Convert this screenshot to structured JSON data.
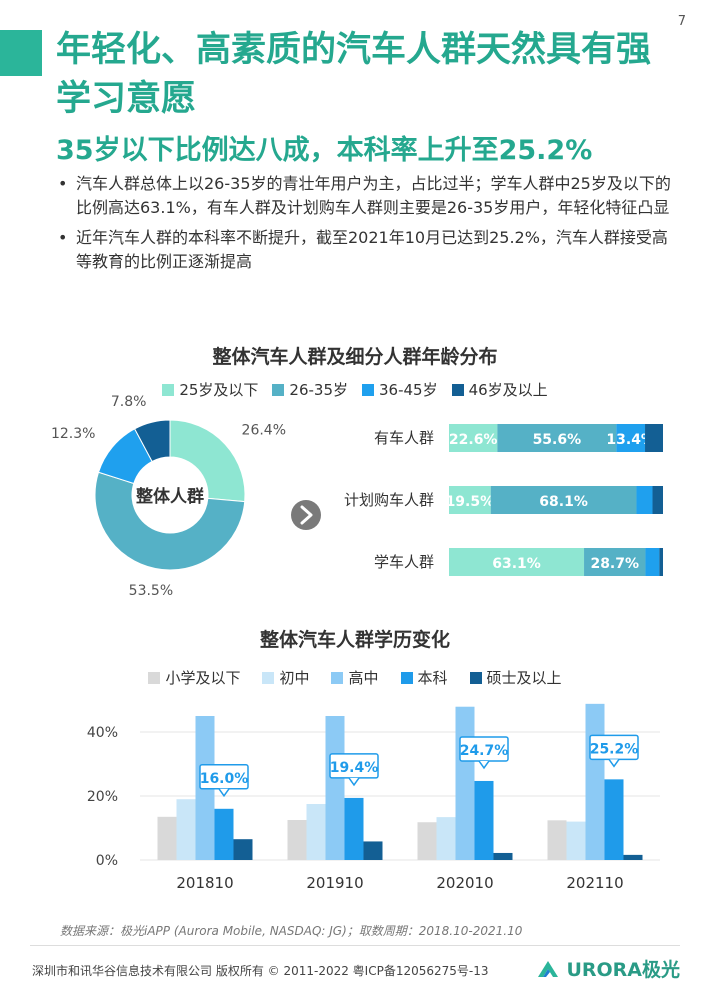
{
  "page_number": "7",
  "title": "年轻化、高素质的汽车人群天然具有强学习意愿",
  "subtitle": "35岁以下比例达八成，本科率上升至25.2%",
  "bullets": [
    "汽车人群总体上以26-35岁的青壮年用户为主，占比过半；学车人群中25岁及以下的比例高达63.1%，有车人群及计划购车人群则主要是26-35岁用户，年轻化特征凸显",
    "近年汽车人群的本科率不断提升，截至2021年10月已达到25.2%，汽车人群接受高等教育的比例正逐渐提高"
  ],
  "chart_data": [
    {
      "type": "pie",
      "title": "整体汽车人群及细分人群年龄分布",
      "center_label": "整体人群",
      "categories": [
        "25岁及以下",
        "26-35岁",
        "36-45岁",
        "46岁及以上"
      ],
      "values": [
        26.4,
        53.5,
        12.3,
        7.8
      ],
      "value_labels": [
        "26.4%",
        "53.5%",
        "12.3%",
        "7.8%"
      ],
      "colors": [
        "#8ee6d2",
        "#55b1c6",
        "#1fa0ee",
        "#135f94"
      ]
    },
    {
      "type": "bar",
      "stacked": true,
      "orientation": "horizontal",
      "categories": [
        "有车人群",
        "计划购车人群",
        "学车人群"
      ],
      "series": [
        {
          "name": "25岁及以下",
          "values": [
            22.6,
            19.5,
            63.1
          ],
          "labels": [
            "22.6%",
            "19.5%",
            "63.1%"
          ],
          "color": "#8ee6d2"
        },
        {
          "name": "26-35岁",
          "values": [
            55.6,
            68.1,
            28.7
          ],
          "labels": [
            "55.6%",
            "68.1%",
            "28.7%"
          ],
          "color": "#55b1c6"
        },
        {
          "name": "36-45岁",
          "values": [
            13.4,
            7.5,
            6.5
          ],
          "labels": [
            "13.4%",
            "",
            ""
          ],
          "color": "#1fa0ee"
        },
        {
          "name": "46岁及以上",
          "values": [
            8.4,
            4.9,
            1.7
          ],
          "labels": [
            "",
            "",
            ""
          ],
          "color": "#135f94"
        }
      ]
    },
    {
      "type": "bar",
      "title": "整体汽车人群学历变化",
      "categories": [
        "201810",
        "201910",
        "202010",
        "202110"
      ],
      "ylim": [
        0,
        50
      ],
      "yticks": [
        0,
        20,
        40
      ],
      "ytick_labels": [
        "0%",
        "20%",
        "40%"
      ],
      "grid": true,
      "series": [
        {
          "name": "小学及以下",
          "values": [
            13.5,
            12.5,
            11.8,
            12.4
          ],
          "color": "#d9d9d9"
        },
        {
          "name": "初中",
          "values": [
            19.0,
            17.5,
            13.4,
            12.0
          ],
          "color": "#c9e6f8"
        },
        {
          "name": "高中",
          "values": [
            45.0,
            45.0,
            47.9,
            48.8
          ],
          "color": "#8ccaf5"
        },
        {
          "name": "本科",
          "values": [
            16.0,
            19.4,
            24.7,
            25.2
          ],
          "color": "#1f9bea"
        },
        {
          "name": "硕士及以上",
          "values": [
            6.5,
            5.8,
            2.2,
            1.6
          ],
          "color": "#135f94"
        }
      ],
      "callouts": [
        "16.0%",
        "19.4%",
        "24.7%",
        "25.2%"
      ]
    }
  ],
  "source": "数据来源：极光iAPP (Aurora Mobile, NASDAQ: JG)；取数周期：2018.10-2021.10",
  "footer": {
    "copyright": "深圳市和讯华谷信息技术有限公司 版权所有 © 2011-2022 粤ICP备12056275号-13",
    "brand": "URORA极光"
  },
  "icons": {
    "arrow": "arrow-right-circle-icon",
    "logo": "aurora-logo-icon"
  }
}
